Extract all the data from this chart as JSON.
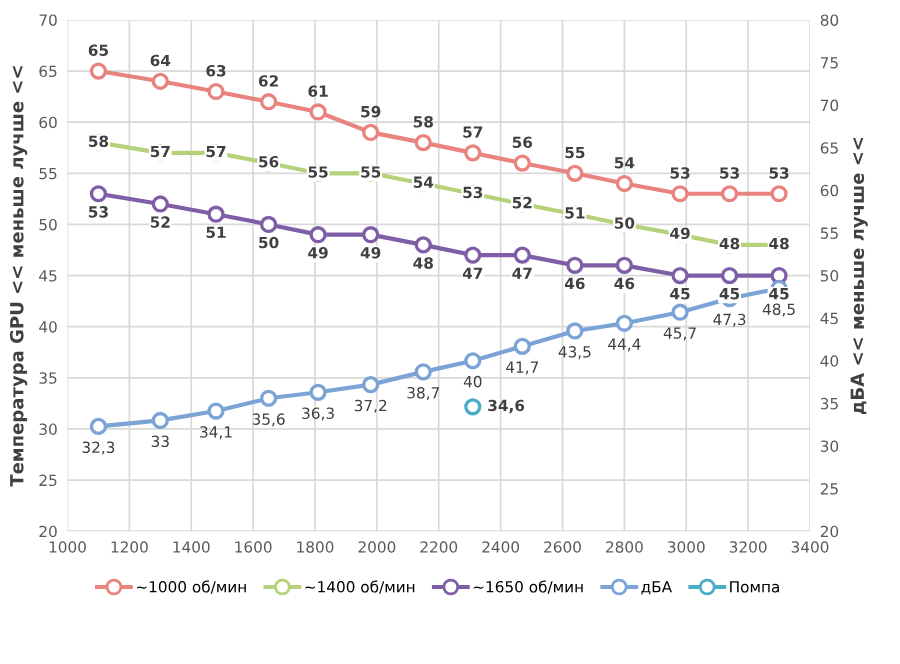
{
  "chart_data": {
    "type": "line",
    "x": [
      1100,
      1300,
      1480,
      1650,
      1810,
      1980,
      2150,
      2310,
      2470,
      2640,
      2800,
      2980,
      3140,
      3300
    ],
    "ylabel": "Температура GPU << меньше лучше <<",
    "y2label": "дБА << меньше лучше <<",
    "xlim": [
      1000,
      3400
    ],
    "xticks": [
      1000,
      1200,
      1400,
      1600,
      1800,
      2000,
      2200,
      2400,
      2600,
      2800,
      3000,
      3200,
      3400
    ],
    "ylim": [
      20,
      70
    ],
    "yticks": [
      20,
      25,
      30,
      35,
      40,
      45,
      50,
      55,
      60,
      65,
      70
    ],
    "y2lim": [
      20,
      80
    ],
    "y2ticks": [
      20,
      25,
      30,
      35,
      40,
      45,
      50,
      55,
      60,
      65,
      70,
      75,
      80
    ],
    "grid": true,
    "legend": "bottom",
    "marker": "circle",
    "line_style": "solid",
    "series": [
      {
        "name": "~1000 об/мин",
        "color": "#e8837f",
        "values": [
          65,
          64,
          63,
          62,
          61,
          59,
          58,
          57,
          56,
          55,
          54,
          53,
          53,
          53
        ],
        "value_labels": [
          "65",
          "64",
          "63",
          "62",
          "61",
          "59",
          "58",
          "57",
          "56",
          "55",
          "54",
          "53",
          "53",
          "53"
        ]
      },
      {
        "name": "~1400 об/мин",
        "color": "#b5d27a",
        "values": [
          58,
          57,
          57,
          56,
          55,
          55,
          54,
          53,
          52,
          51,
          50,
          49,
          48,
          48
        ],
        "value_labels": [
          "58",
          "57",
          "57",
          "56",
          "55",
          "55",
          "54",
          "53",
          "52",
          "51",
          "50",
          "49",
          "48",
          "48"
        ]
      },
      {
        "name": "~1650 об/мин",
        "color": "#7f5ea8",
        "values": [
          53,
          52,
          51,
          50,
          49,
          49,
          48,
          47,
          47,
          46,
          46,
          45,
          45,
          45
        ],
        "value_labels": [
          "53",
          "52",
          "51",
          "50",
          "49",
          "49",
          "48",
          "47",
          "47",
          "46",
          "46",
          "45",
          "45",
          "45"
        ]
      },
      {
        "name": "дБА",
        "color": "#7ba3d6",
        "axis": "y2",
        "values": [
          32.3,
          33,
          34.1,
          35.6,
          36.3,
          37.2,
          38.7,
          40,
          41.7,
          43.5,
          44.4,
          45.7,
          47.3,
          48.5
        ],
        "value_labels": [
          "32,3",
          "33",
          "34,1",
          "35,6",
          "36,3",
          "37,2",
          "38,7",
          "40",
          "41,7",
          "43,5",
          "44,4",
          "45,7",
          "47,3",
          "48,5"
        ]
      },
      {
        "name": "Помпа",
        "color": "#4bacc6",
        "axis": "y2",
        "x": [
          2310
        ],
        "values": [
          34.6
        ],
        "value_labels": [
          "34,6"
        ]
      }
    ]
  }
}
